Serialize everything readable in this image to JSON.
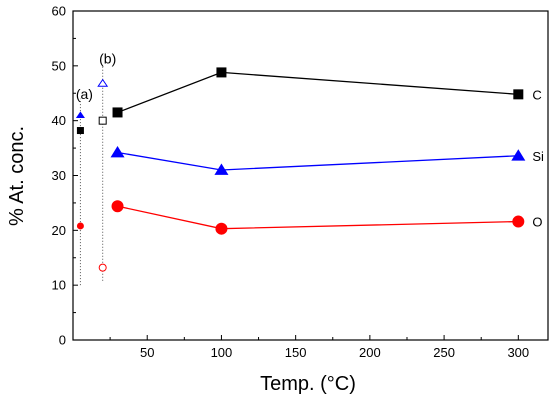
{
  "chart_data": {
    "type": "line",
    "title": "",
    "xlabel": "Temp. (°C)",
    "ylabel": "% At. conc.",
    "xlim": [
      0,
      320
    ],
    "ylim": [
      0,
      60
    ],
    "xticks": [
      50,
      100,
      150,
      200,
      250,
      300
    ],
    "yticks": [
      0,
      10,
      20,
      30,
      40,
      50,
      60
    ],
    "grid": false,
    "series": [
      {
        "name": "C",
        "color": "#000000",
        "marker": "square",
        "x": [
          30,
          100,
          300
        ],
        "y": [
          41.5,
          48.8,
          44.8
        ]
      },
      {
        "name": "Si",
        "color": "#0000ff",
        "marker": "triangle",
        "x": [
          30,
          100,
          300
        ],
        "y": [
          34.2,
          31.0,
          33.6
        ]
      },
      {
        "name": "O",
        "color": "#ff0000",
        "marker": "circle",
        "x": [
          30,
          100,
          300
        ],
        "y": [
          24.4,
          20.3,
          21.6
        ]
      }
    ],
    "reference_points": [
      {
        "label": "(a)",
        "x": 5,
        "filled": true,
        "points": [
          {
            "element": "C",
            "marker": "square",
            "color": "#000000",
            "y": 38.2
          },
          {
            "element": "Si",
            "marker": "triangle",
            "color": "#0000ff",
            "y": 41.0
          },
          {
            "element": "O",
            "marker": "circle",
            "color": "#ff0000",
            "y": 20.8
          }
        ],
        "line_range": [
          10.0,
          44.0
        ]
      },
      {
        "label": "(b)",
        "x": 20,
        "filled": false,
        "points": [
          {
            "element": "C",
            "marker": "square",
            "color": "#000000",
            "y": 40.0
          },
          {
            "element": "Si",
            "marker": "triangle",
            "color": "#0000ff",
            "y": 46.8
          },
          {
            "element": "O",
            "marker": "circle",
            "color": "#ff0000",
            "y": 13.2
          }
        ],
        "line_range": [
          10.8,
          50.0
        ]
      }
    ]
  }
}
